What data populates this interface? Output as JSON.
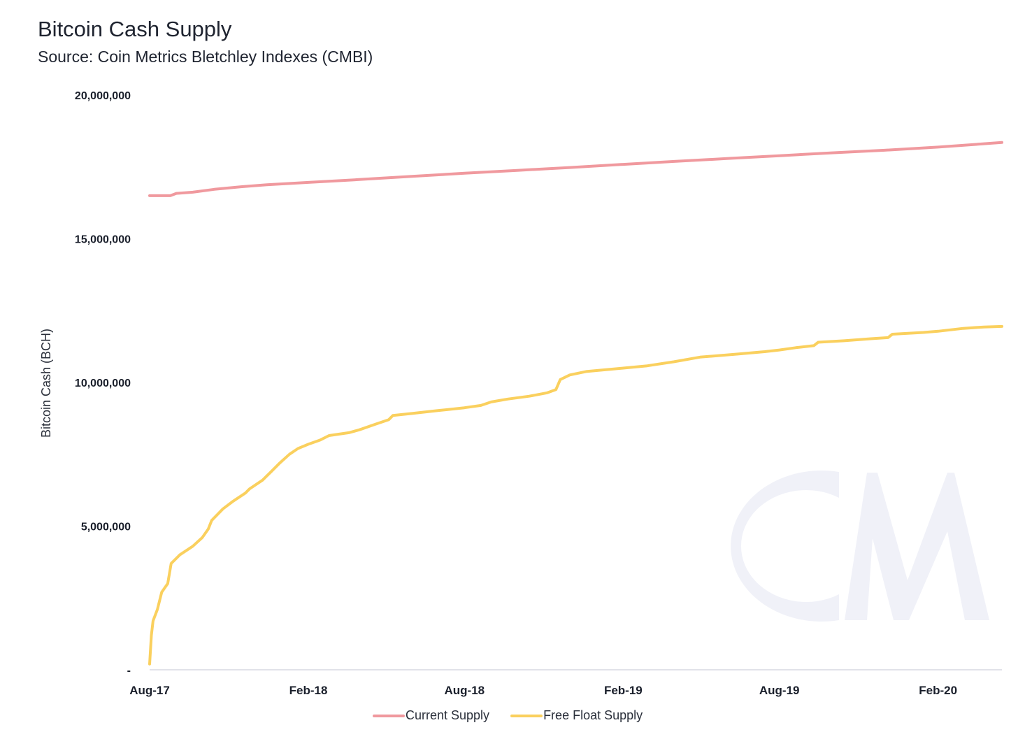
{
  "title": "Bitcoin Cash Supply",
  "subtitle": "Source: Coin Metrics Bletchley Indexes (CMBI)",
  "watermark": "CM",
  "chart_data": {
    "type": "line",
    "ylabel": "Bitcoin Cash (BCH)",
    "xlabel": "",
    "ylim": [
      0,
      20000000
    ],
    "yticks": [
      {
        "value": 0,
        "label": "-"
      },
      {
        "value": 5000000,
        "label": "5,000,000"
      },
      {
        "value": 10000000,
        "label": "10,000,000"
      },
      {
        "value": 15000000,
        "label": "15,000,000"
      },
      {
        "value": 20000000,
        "label": "20,000,000"
      }
    ],
    "xlim": [
      "2017-08-01",
      "2020-04-15"
    ],
    "xticks": [
      {
        "date": "2017-08-01",
        "label": "Aug-17"
      },
      {
        "date": "2018-02-01",
        "label": "Feb-18"
      },
      {
        "date": "2018-08-01",
        "label": "Aug-18"
      },
      {
        "date": "2019-02-01",
        "label": "Feb-19"
      },
      {
        "date": "2019-08-01",
        "label": "Aug-19"
      },
      {
        "date": "2020-02-01",
        "label": "Feb-20"
      }
    ],
    "grid": false,
    "legend_position": "bottom",
    "series": [
      {
        "name": "Current Supply",
        "color": "#f0999e",
        "points": [
          [
            "2017-08-01",
            16500000
          ],
          [
            "2017-08-25",
            16500000
          ],
          [
            "2017-09-01",
            16580000
          ],
          [
            "2017-09-20",
            16620000
          ],
          [
            "2017-10-15",
            16720000
          ],
          [
            "2017-11-15",
            16810000
          ],
          [
            "2017-12-15",
            16880000
          ],
          [
            "2018-02-01",
            16960000
          ],
          [
            "2018-04-01",
            17060000
          ],
          [
            "2018-06-01",
            17170000
          ],
          [
            "2018-08-01",
            17280000
          ],
          [
            "2018-10-01",
            17380000
          ],
          [
            "2018-12-01",
            17480000
          ],
          [
            "2019-02-01",
            17590000
          ],
          [
            "2019-04-01",
            17690000
          ],
          [
            "2019-06-01",
            17790000
          ],
          [
            "2019-08-01",
            17890000
          ],
          [
            "2019-10-01",
            17990000
          ],
          [
            "2019-12-01",
            18080000
          ],
          [
            "2020-02-01",
            18190000
          ],
          [
            "2020-04-15",
            18350000
          ]
        ]
      },
      {
        "name": "Free Float Supply",
        "color": "#fad05e",
        "points": [
          [
            "2017-08-01",
            200000
          ],
          [
            "2017-08-03",
            1200000
          ],
          [
            "2017-08-05",
            1700000
          ],
          [
            "2017-08-10",
            2100000
          ],
          [
            "2017-08-15",
            2700000
          ],
          [
            "2017-08-22",
            3000000
          ],
          [
            "2017-08-26",
            3700000
          ],
          [
            "2017-09-05",
            4000000
          ],
          [
            "2017-09-20",
            4300000
          ],
          [
            "2017-10-01",
            4600000
          ],
          [
            "2017-10-08",
            4900000
          ],
          [
            "2017-10-12",
            5200000
          ],
          [
            "2017-10-25",
            5600000
          ],
          [
            "2017-11-05",
            5850000
          ],
          [
            "2017-11-20",
            6150000
          ],
          [
            "2017-11-25",
            6300000
          ],
          [
            "2017-12-10",
            6600000
          ],
          [
            "2017-12-20",
            6900000
          ],
          [
            "2017-12-30",
            7200000
          ],
          [
            "2018-01-10",
            7500000
          ],
          [
            "2018-01-20",
            7700000
          ],
          [
            "2018-02-01",
            7850000
          ],
          [
            "2018-02-15",
            8000000
          ],
          [
            "2018-02-25",
            8150000
          ],
          [
            "2018-03-20",
            8250000
          ],
          [
            "2018-04-01",
            8350000
          ],
          [
            "2018-04-20",
            8550000
          ],
          [
            "2018-05-05",
            8700000
          ],
          [
            "2018-05-10",
            8850000
          ],
          [
            "2018-06-01",
            8920000
          ],
          [
            "2018-07-01",
            9020000
          ],
          [
            "2018-08-01",
            9120000
          ],
          [
            "2018-08-20",
            9200000
          ],
          [
            "2018-09-01",
            9320000
          ],
          [
            "2018-09-20",
            9420000
          ],
          [
            "2018-10-15",
            9520000
          ],
          [
            "2018-11-05",
            9640000
          ],
          [
            "2018-11-15",
            9750000
          ],
          [
            "2018-11-20",
            10100000
          ],
          [
            "2018-12-01",
            10260000
          ],
          [
            "2018-12-20",
            10380000
          ],
          [
            "2019-02-01",
            10500000
          ],
          [
            "2019-03-01",
            10580000
          ],
          [
            "2019-04-01",
            10720000
          ],
          [
            "2019-05-01",
            10880000
          ],
          [
            "2019-06-15",
            10990000
          ],
          [
            "2019-07-15",
            11070000
          ],
          [
            "2019-08-01",
            11130000
          ],
          [
            "2019-08-20",
            11210000
          ],
          [
            "2019-09-10",
            11280000
          ],
          [
            "2019-09-15",
            11400000
          ],
          [
            "2019-10-15",
            11450000
          ],
          [
            "2019-11-15",
            11520000
          ],
          [
            "2019-12-05",
            11560000
          ],
          [
            "2019-12-10",
            11680000
          ],
          [
            "2020-01-15",
            11740000
          ],
          [
            "2020-02-01",
            11780000
          ],
          [
            "2020-03-01",
            11880000
          ],
          [
            "2020-03-25",
            11930000
          ],
          [
            "2020-04-15",
            11950000
          ]
        ]
      }
    ]
  }
}
